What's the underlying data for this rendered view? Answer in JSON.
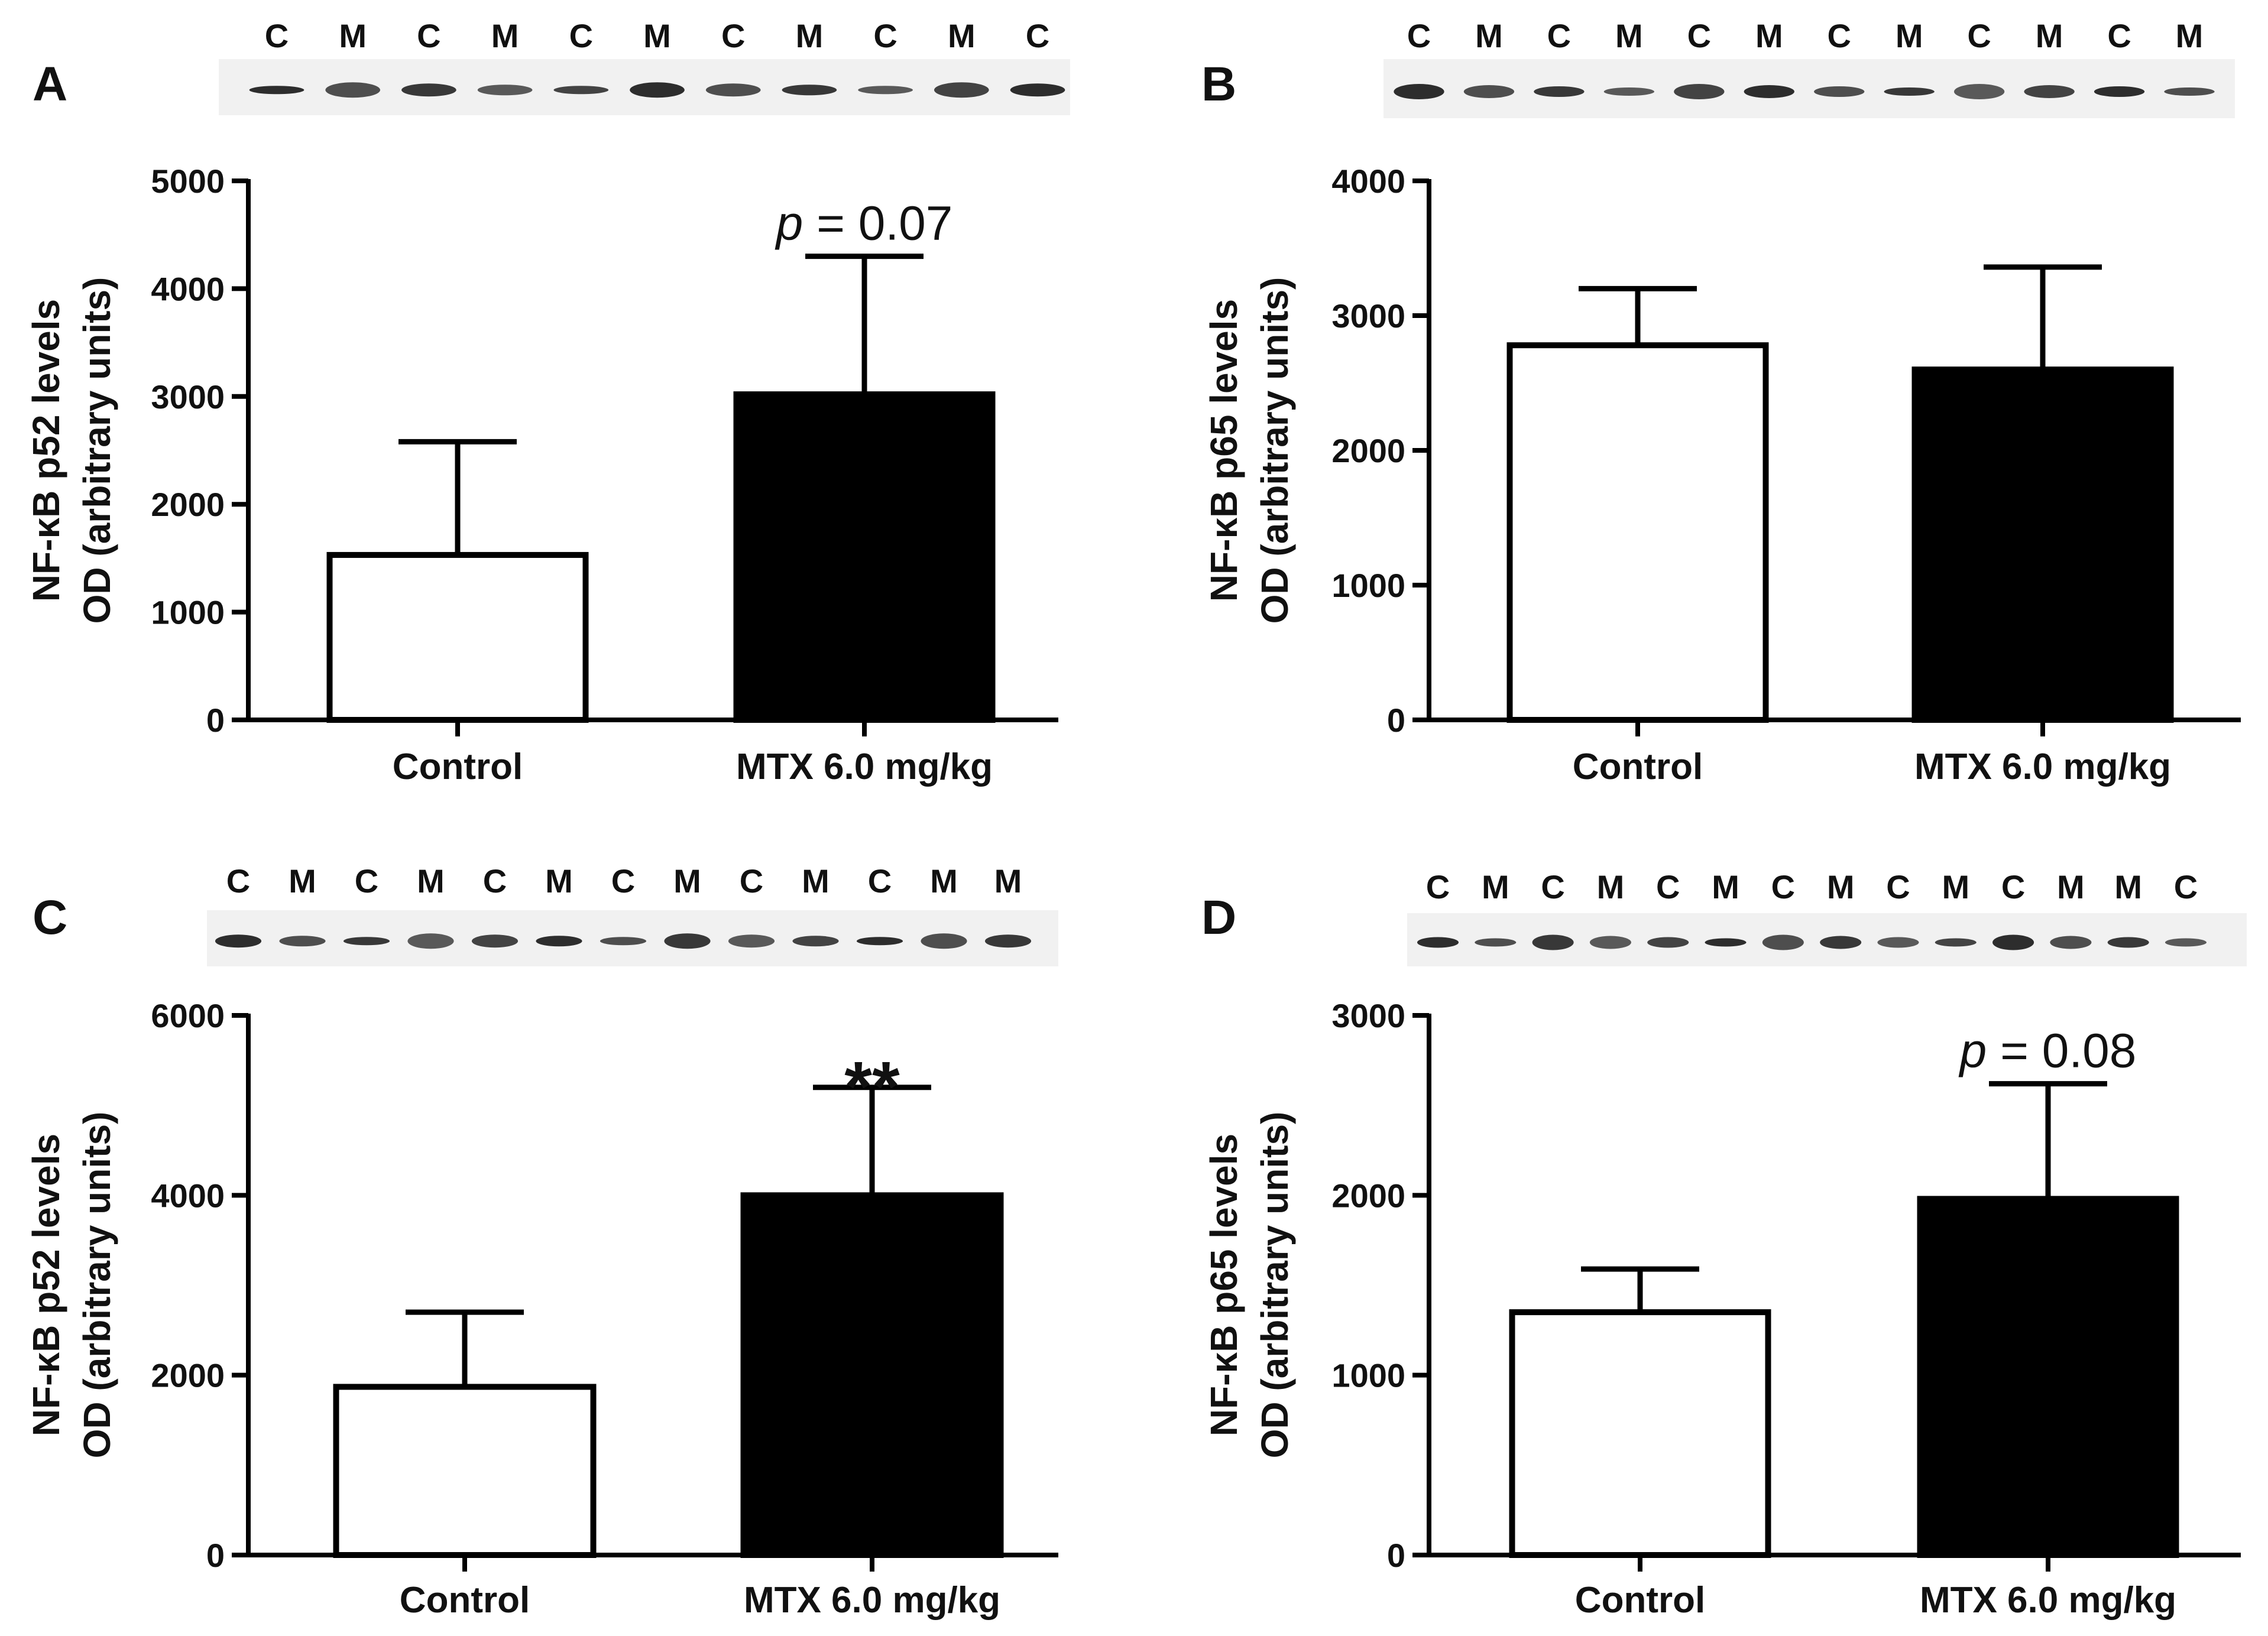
{
  "chart_data": [
    {
      "panel": "A",
      "type": "bar",
      "categories": [
        "Control",
        "MTX 6.0 mg/kg"
      ],
      "values": [
        1530,
        3020
      ],
      "errors": [
        1050,
        1280
      ],
      "bar_fills": [
        "#ffffff",
        "#000000"
      ],
      "ylabel_lines": [
        "NF-κB p52 levels",
        "OD (arbitrary units)"
      ],
      "ylim": [
        0,
        5000
      ],
      "yticks": [
        0,
        1000,
        2000,
        3000,
        4000,
        5000
      ],
      "annotation": {
        "bar_index": 1,
        "prefix": "p",
        "text": " = 0.07"
      },
      "blot_lanes": [
        "C",
        "M",
        "C",
        "M",
        "C",
        "M",
        "C",
        "M",
        "C",
        "M",
        "C"
      ],
      "grid": false,
      "legend": "none"
    },
    {
      "panel": "B",
      "type": "bar",
      "categories": [
        "Control",
        "MTX 6.0 mg/kg"
      ],
      "values": [
        2780,
        2600
      ],
      "errors": [
        420,
        760
      ],
      "bar_fills": [
        "#ffffff",
        "#000000"
      ],
      "ylabel_lines": [
        "NF-κB p65 levels",
        "OD (arbitrary units)"
      ],
      "ylim": [
        0,
        4000
      ],
      "yticks": [
        0,
        1000,
        2000,
        3000,
        4000
      ],
      "annotation": null,
      "blot_lanes": [
        "C",
        "M",
        "C",
        "M",
        "C",
        "M",
        "C",
        "M",
        "C",
        "M",
        "C",
        "M"
      ],
      "grid": false,
      "legend": "none"
    },
    {
      "panel": "C",
      "type": "bar",
      "categories": [
        "Control",
        "MTX 6.0 mg/kg"
      ],
      "values": [
        1870,
        4000
      ],
      "errors": [
        830,
        1200
      ],
      "bar_fills": [
        "#ffffff",
        "#000000"
      ],
      "ylabel_lines": [
        "NF-κB p52 levels",
        "OD (arbitrary units)"
      ],
      "ylim": [
        0,
        6000
      ],
      "yticks": [
        0,
        2000,
        4000,
        6000
      ],
      "annotation": {
        "bar_index": 1,
        "prefix": "",
        "text": "**"
      },
      "blot_lanes": [
        "C",
        "M",
        "C",
        "M",
        "C",
        "M",
        "C",
        "M",
        "C",
        "M",
        "C",
        "M",
        "M"
      ],
      "grid": false,
      "legend": "none"
    },
    {
      "panel": "D",
      "type": "bar",
      "categories": [
        "Control",
        "MTX 6.0 mg/kg"
      ],
      "values": [
        1350,
        1980
      ],
      "errors": [
        240,
        640
      ],
      "bar_fills": [
        "#ffffff",
        "#000000"
      ],
      "ylabel_lines": [
        "NF-κB p65 levels",
        "OD (arbitrary units)"
      ],
      "ylim": [
        0,
        3000
      ],
      "yticks": [
        0,
        1000,
        2000,
        3000
      ],
      "annotation": {
        "bar_index": 1,
        "prefix": "p",
        "text": " = 0.08"
      },
      "blot_lanes": [
        "C",
        "M",
        "C",
        "M",
        "C",
        "M",
        "C",
        "M",
        "C",
        "M",
        "C",
        "M",
        "M",
        "C"
      ],
      "grid": false,
      "legend": "none"
    }
  ]
}
